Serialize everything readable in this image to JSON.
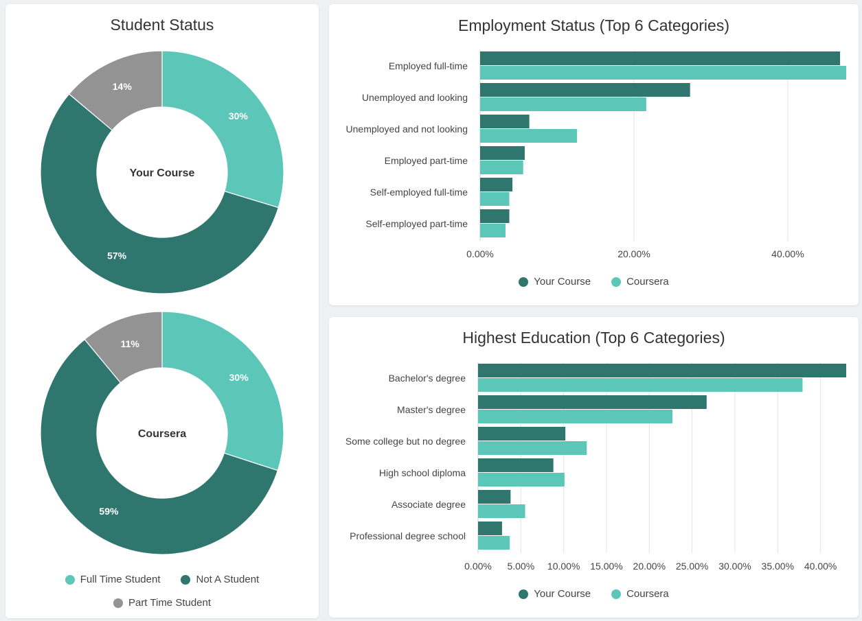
{
  "colors": {
    "dark": "#2f766f",
    "light": "#5cc6b8",
    "grey": "#939393"
  },
  "student_card": {
    "title": "Student Status",
    "legend": [
      "Full Time Student",
      "Not A Student",
      "Part Time Student"
    ]
  },
  "employment_card": {
    "title": "Employment Status (Top 6 Categories)"
  },
  "education_card": {
    "title": "Highest Education (Top 6 Categories)"
  },
  "bar_legend": {
    "series1": "Your Course",
    "series2": "Coursera"
  },
  "chart_data": [
    {
      "type": "pie",
      "title": "Your Course",
      "center_label": "Your Course",
      "categories": [
        "Full Time Student",
        "Not A Student",
        "Part Time Student"
      ],
      "values": [
        30,
        57,
        14
      ],
      "labels": [
        "30%",
        "57%",
        "14%"
      ]
    },
    {
      "type": "pie",
      "title": "Coursera",
      "center_label": "Coursera",
      "categories": [
        "Full Time Student",
        "Not A Student",
        "Part Time Student"
      ],
      "values": [
        30,
        59,
        11
      ],
      "labels": [
        "30%",
        "59%",
        "11%"
      ]
    },
    {
      "type": "bar",
      "orientation": "horizontal",
      "title": "Employment Status (Top 6 Categories)",
      "categories": [
        "Employed full-time",
        "Unemployed and looking",
        "Unemployed and not looking",
        "Employed part-time",
        "Self-employed full-time",
        "Self-employed part-time"
      ],
      "series": [
        {
          "name": "Your Course",
          "values": [
            46.8,
            27.3,
            6.4,
            5.8,
            4.2,
            3.8
          ]
        },
        {
          "name": "Coursera",
          "values": [
            47.6,
            21.6,
            12.6,
            5.6,
            3.8,
            3.3
          ]
        }
      ],
      "xlim": [
        0,
        47.6
      ],
      "ticks": [
        0,
        20,
        40
      ],
      "tick_labels": [
        "0.00%",
        "20.00%",
        "40.00%"
      ]
    },
    {
      "type": "bar",
      "orientation": "horizontal",
      "title": "Highest Education (Top 6 Categories)",
      "categories": [
        "Bachelor's degree",
        "Master's degree",
        "Some college but no degree",
        "High school diploma",
        "Associate degree",
        "Professional degree school"
      ],
      "series": [
        {
          "name": "Your Course",
          "values": [
            43.0,
            26.7,
            10.2,
            8.8,
            3.8,
            2.8
          ]
        },
        {
          "name": "Coursera",
          "values": [
            37.9,
            22.7,
            12.7,
            10.1,
            5.5,
            3.7
          ]
        }
      ],
      "xlim": [
        0,
        43
      ],
      "ticks": [
        0,
        5,
        10,
        15,
        20,
        25,
        30,
        35,
        40
      ],
      "tick_labels": [
        "0.00%",
        "5.00%",
        "10.00%",
        "15.00%",
        "20.00%",
        "25.00%",
        "30.00%",
        "35.00%",
        "40.00%"
      ]
    }
  ]
}
